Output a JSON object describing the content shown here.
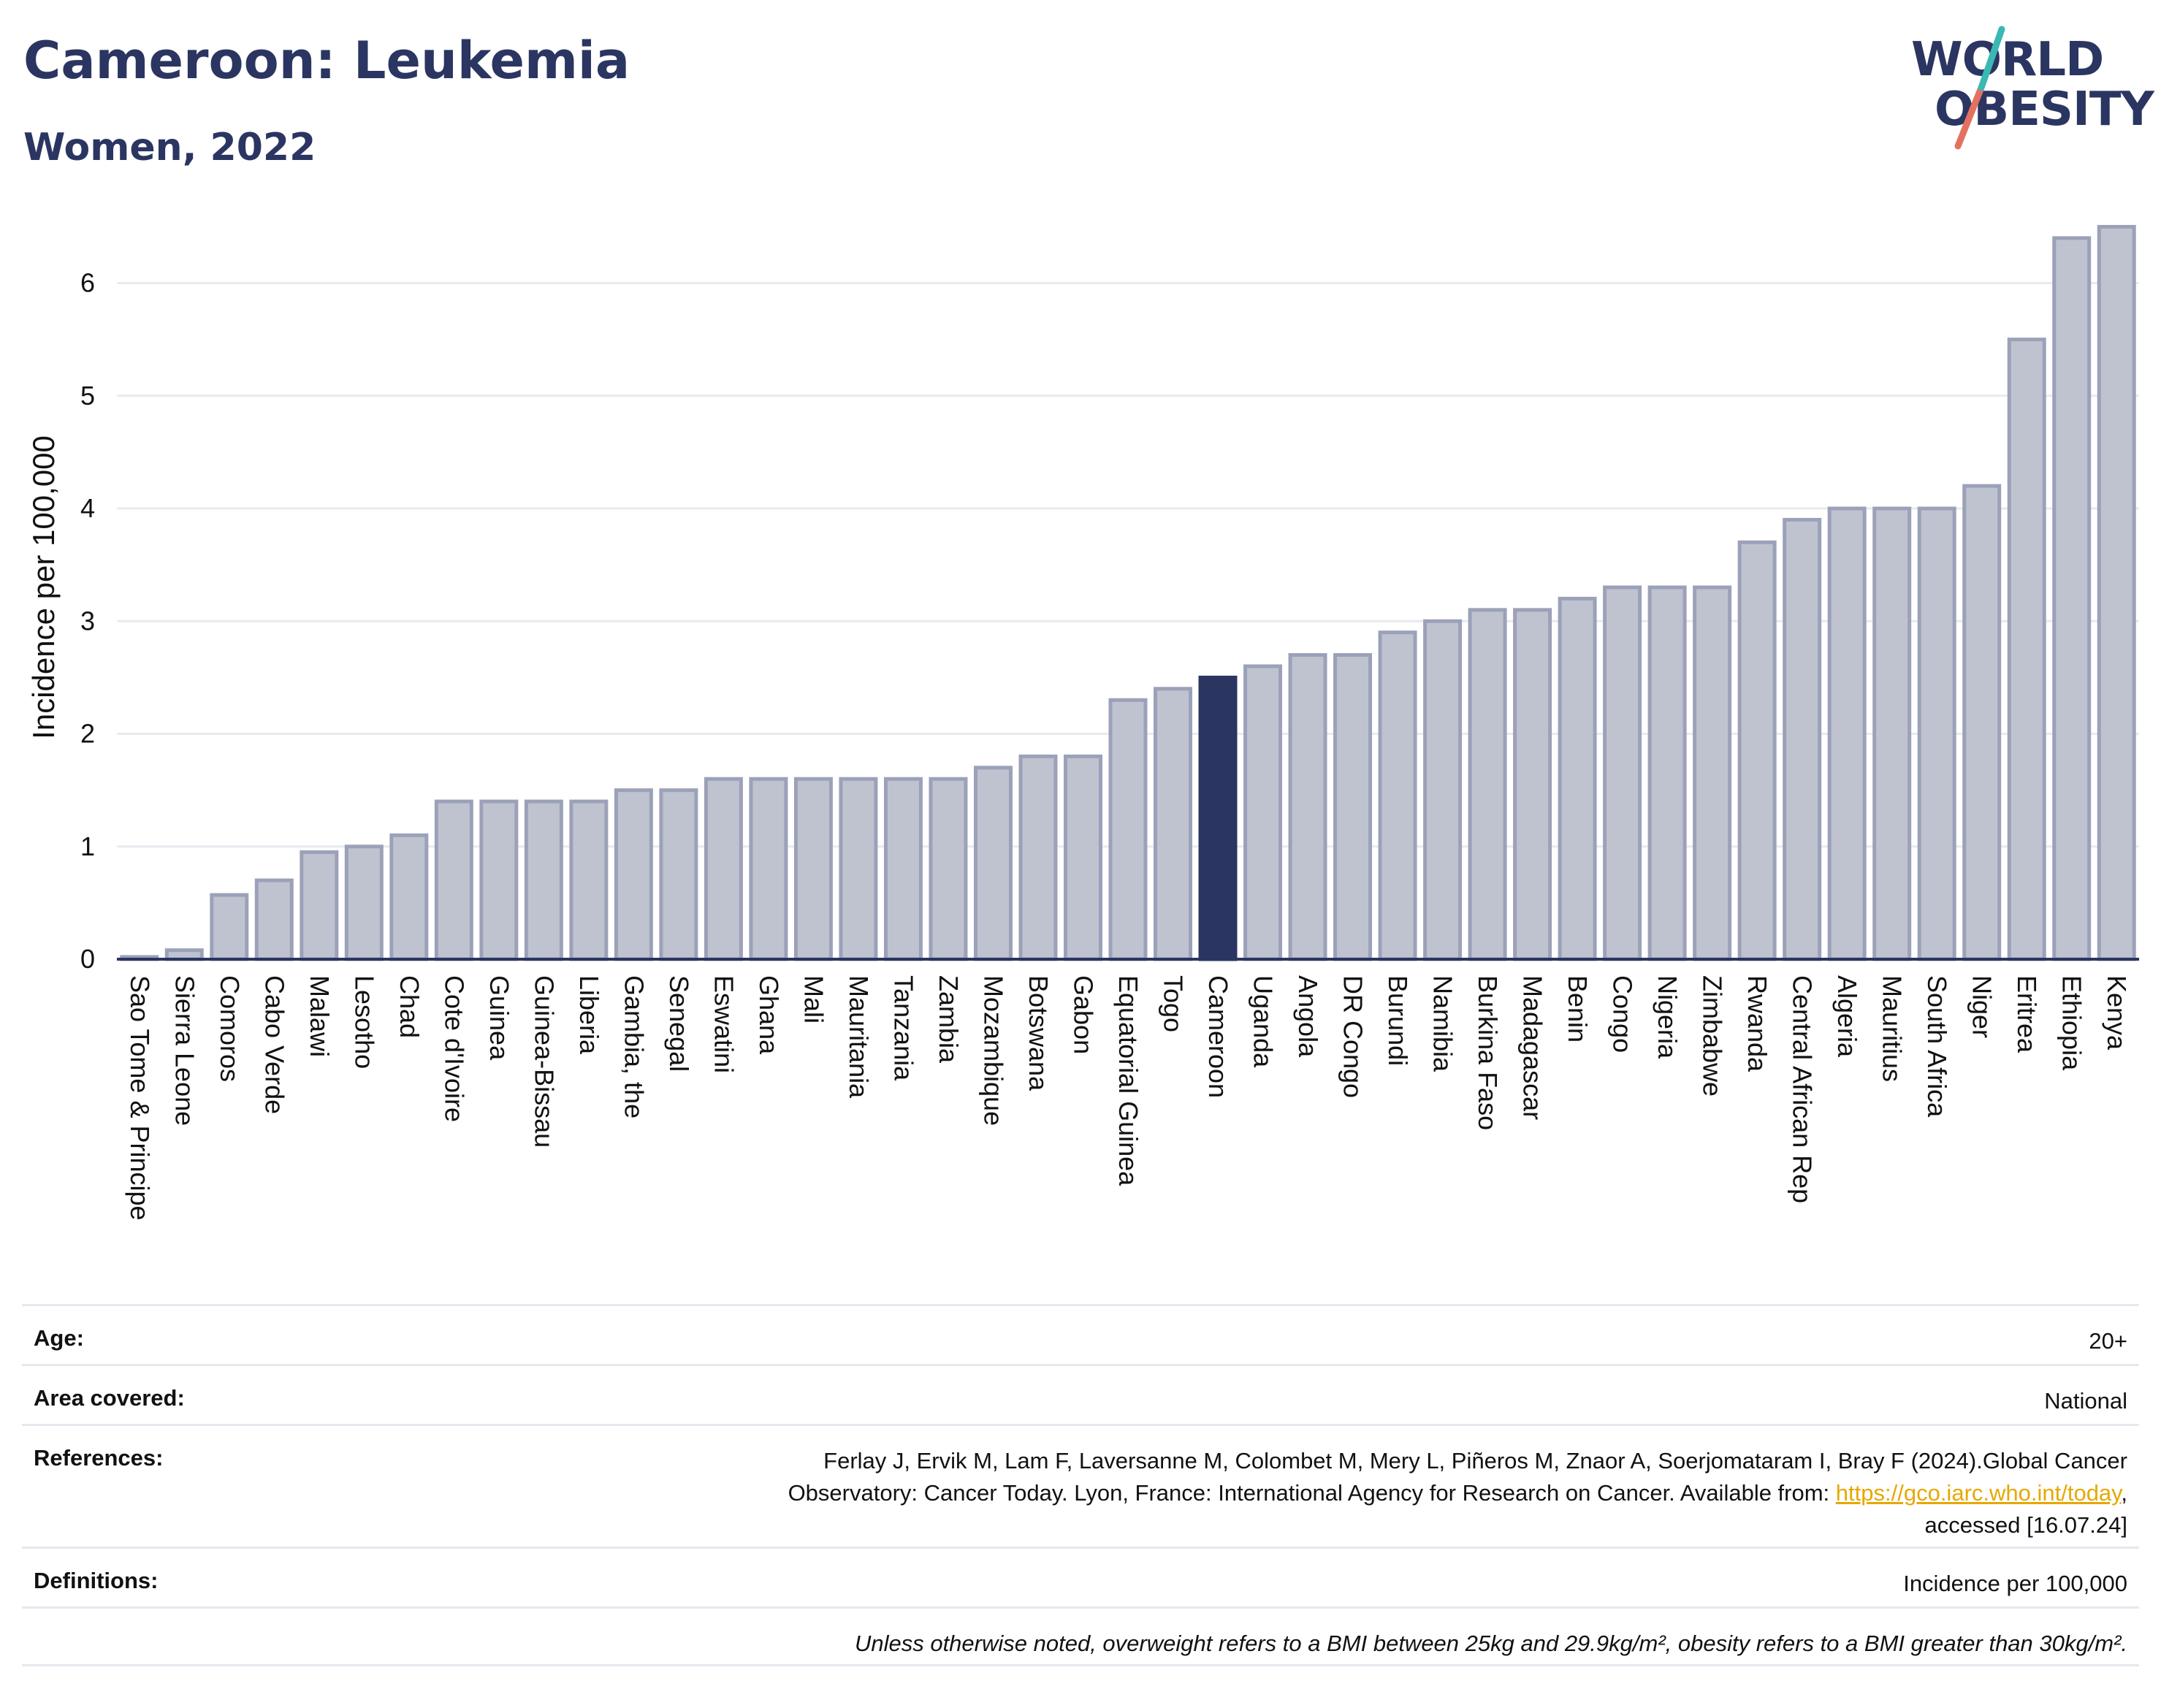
{
  "header": {
    "title": "Cameroon: Leukemia",
    "subtitle": "Women, 2022",
    "logo_line1": "WORLD",
    "logo_line2": "OBESITY"
  },
  "chart_data": {
    "type": "bar",
    "ylabel": "Incidence per 100,000",
    "ylim": [
      0,
      6.6
    ],
    "yticks": [
      0,
      1,
      2,
      3,
      4,
      5,
      6
    ],
    "grid": true,
    "highlight": "Cameroon",
    "colors": {
      "bar": "#bfc3d0",
      "bar_border": "#9ba1b8",
      "highlight": "#2b3561",
      "grid": "#e8eaf0",
      "axis": "#2b3561"
    },
    "categories": [
      "Sao Tome & Principe",
      "Sierra Leone",
      "Comoros",
      "Cabo Verde",
      "Malawi",
      "Lesotho",
      "Chad",
      "Cote d'Ivoire",
      "Guinea",
      "Guinea-Bissau",
      "Liberia",
      "Gambia, the",
      "Senegal",
      "Eswatini",
      "Ghana",
      "Mali",
      "Mauritania",
      "Tanzania",
      "Zambia",
      "Mozambique",
      "Botswana",
      "Gabon",
      "Equatorial Guinea",
      "Togo",
      "Cameroon",
      "Uganda",
      "Angola",
      "DR Congo",
      "Burundi",
      "Namibia",
      "Burkina Faso",
      "Madagascar",
      "Benin",
      "Congo",
      "Nigeria",
      "Zimbabwe",
      "Rwanda",
      "Central African Rep",
      "Algeria",
      "Mauritius",
      "South Africa",
      "Niger",
      "Eritrea",
      "Ethiopia",
      "Kenya"
    ],
    "values": [
      0.02,
      0.08,
      0.57,
      0.7,
      0.95,
      1.0,
      1.1,
      1.4,
      1.4,
      1.4,
      1.4,
      1.5,
      1.5,
      1.6,
      1.6,
      1.6,
      1.6,
      1.6,
      1.6,
      1.7,
      1.8,
      1.8,
      2.3,
      2.4,
      2.5,
      2.6,
      2.7,
      2.7,
      2.9,
      3.0,
      3.1,
      3.1,
      3.2,
      3.3,
      3.3,
      3.3,
      3.7,
      3.9,
      4.0,
      4.0,
      4.0,
      4.2,
      5.5,
      6.4,
      6.5
    ]
  },
  "info": {
    "age_label": "Age:",
    "age_value": "20+",
    "area_label": "Area covered:",
    "area_value": "National",
    "references_label": "References:",
    "references_text1": "Ferlay J, Ervik M, Lam F, Laversanne M, Colombet M, Mery L, Piñeros M, Znaor A, Soerjomataram I, Bray F (2024).Global Cancer",
    "references_text2": "Observatory: Cancer Today. Lyon, France: International Agency for Research on Cancer. Available from: ",
    "references_link": "https://gco.iarc.who.int/today",
    "references_after_link": ",",
    "references_text3": "accessed [16.07.24]",
    "definitions_label": "Definitions:",
    "definitions_value": "Incidence per 100,000",
    "note": "Unless otherwise noted, overweight refers to a BMI between 25kg and 29.9kg/m², obesity refers to a BMI greater than 30kg/m²."
  }
}
